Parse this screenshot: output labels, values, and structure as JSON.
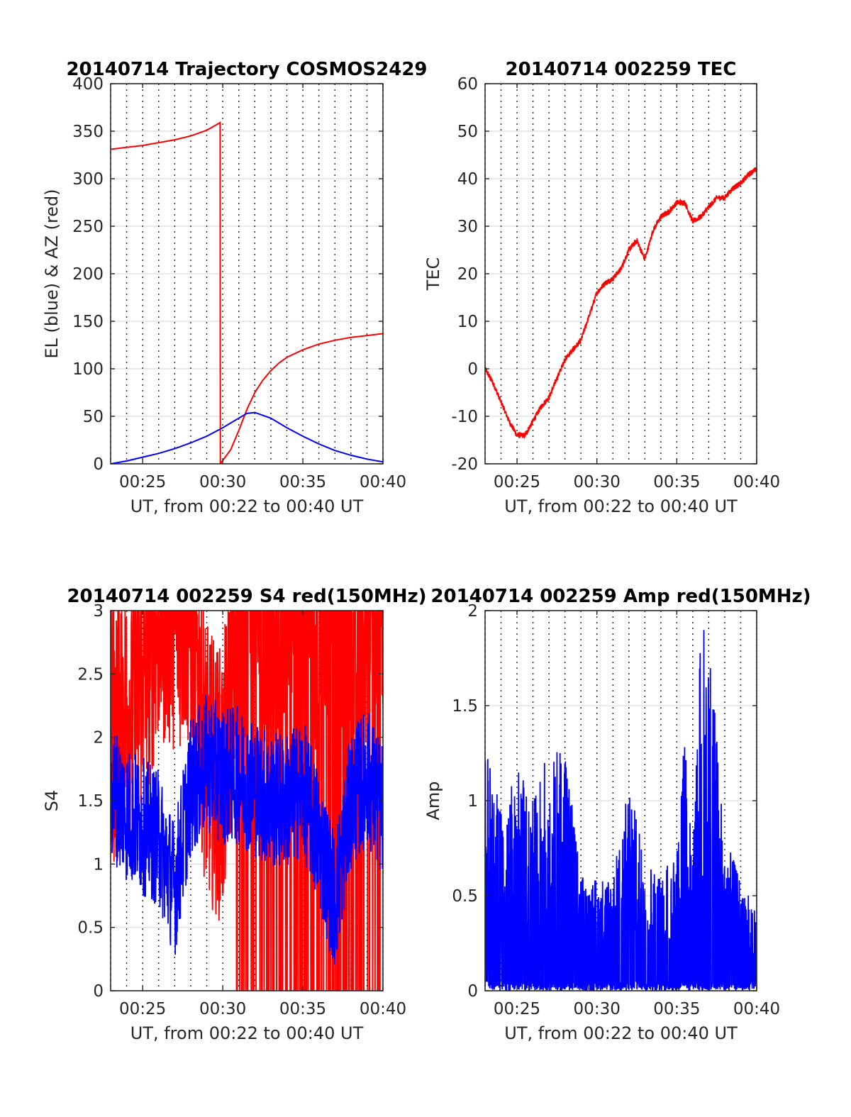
{
  "chart_data": [
    {
      "type": "line",
      "title": "20140714 Trajectory COSMOS2429",
      "xlabel": "UT, from 00:22 to 00:40 UT",
      "ylabel": "EL (blue) & AZ (red)",
      "xlim": [
        "00:23",
        "00:40"
      ],
      "ylim": [
        0,
        400
      ],
      "yticks": [
        0,
        50,
        100,
        150,
        200,
        250,
        300,
        350,
        400
      ],
      "xticks": [
        "00:25",
        "00:30",
        "00:35",
        "00:40"
      ],
      "grid": "dotted vertical lines each minute, horizontal grid at y ticks",
      "series": [
        {
          "color": "#ff0000",
          "x": [
            "00:23:00",
            "00:24:00",
            "00:25:00",
            "00:26:00",
            "00:27:00",
            "00:28:00",
            "00:29:00",
            "00:29:50",
            "00:29:51",
            "00:30:30",
            "00:31:00",
            "00:31:30",
            "00:32:00",
            "00:32:30",
            "00:33:00",
            "00:33:30",
            "00:34:00",
            "00:35:00",
            "00:36:00",
            "00:37:00",
            "00:38:00",
            "00:39:00",
            "00:40:00"
          ],
          "values": [
            331,
            333,
            335,
            338,
            341,
            345,
            351,
            359,
            0,
            15,
            35,
            57,
            75,
            88,
            98,
            106,
            112,
            120,
            126,
            130,
            133,
            135,
            137
          ]
        },
        {
          "color": "#0000ff",
          "x": [
            "00:23:00",
            "00:24:00",
            "00:25:00",
            "00:26:00",
            "00:27:00",
            "00:28:00",
            "00:29:00",
            "00:30:00",
            "00:31:00",
            "00:31:30",
            "00:32:00",
            "00:33:00",
            "00:34:00",
            "00:35:00",
            "00:36:00",
            "00:37:00",
            "00:38:00",
            "00:39:00",
            "00:40:00"
          ],
          "values": [
            0,
            3,
            7,
            11,
            16,
            22,
            29,
            38,
            48,
            53,
            54,
            48,
            38,
            29,
            21,
            14,
            9,
            5,
            2
          ]
        }
      ]
    },
    {
      "type": "line",
      "title": "20140714 002259 TEC",
      "xlabel": "UT, from 00:22 to 00:40 UT",
      "ylabel": "TEC",
      "xlim": [
        "00:23",
        "00:40"
      ],
      "ylim": [
        -20,
        60
      ],
      "yticks": [
        -20,
        -10,
        0,
        10,
        20,
        30,
        40,
        50,
        60
      ],
      "xticks": [
        "00:25",
        "00:30",
        "00:35",
        "00:40"
      ],
      "series": [
        {
          "color": "#ff0000",
          "x": [
            "00:23:00",
            "00:23:30",
            "00:24:00",
            "00:24:30",
            "00:25:00",
            "00:25:30",
            "00:26:00",
            "00:26:30",
            "00:27:00",
            "00:27:30",
            "00:28:00",
            "00:28:30",
            "00:29:00",
            "00:29:30",
            "00:30:00",
            "00:30:30",
            "00:31:00",
            "00:31:30",
            "00:32:00",
            "00:32:30",
            "00:33:00",
            "00:33:30",
            "00:34:00",
            "00:34:30",
            "00:35:00",
            "00:35:30",
            "00:36:00",
            "00:36:30",
            "00:37:00",
            "00:37:30",
            "00:38:00",
            "00:38:30",
            "00:39:00",
            "00:39:30",
            "00:40:00"
          ],
          "values": [
            0,
            -3,
            -7,
            -11,
            -14,
            -14,
            -11,
            -8,
            -6,
            -2,
            2,
            4,
            6,
            11,
            16,
            18,
            19,
            21,
            25,
            27,
            23,
            29,
            32,
            33,
            35,
            35,
            31,
            32,
            34,
            36,
            36,
            38,
            39,
            41,
            42
          ]
        }
      ]
    },
    {
      "type": "line",
      "title": "20140714 002259 S4 red(150MHz)",
      "xlabel": "UT, from 00:22 to 00:40 UT",
      "ylabel": "S4",
      "xlim": [
        "00:23",
        "00:40"
      ],
      "ylim": [
        0,
        3
      ],
      "yticks": [
        0,
        0.5,
        1,
        1.5,
        2,
        2.5,
        3
      ],
      "xticks": [
        "00:25",
        "00:30",
        "00:35",
        "00:40"
      ],
      "series": [
        {
          "color": "#ff0000",
          "x": [
            "00:23:00",
            "00:24:00",
            "00:25:00",
            "00:26:00",
            "00:27:00",
            "00:28:00",
            "00:29:00",
            "00:30:00",
            "00:31:00",
            "00:32:00",
            "00:33:00",
            "00:34:00",
            "00:35:00",
            "00:36:00",
            "00:37:00",
            "00:38:00",
            "00:39:00",
            "00:40:00"
          ],
          "values": [
            2.0,
            2.2,
            2.5,
            3.0,
            3.0,
            3.0,
            1.8,
            1.6,
            3.0,
            3.0,
            3.0,
            3.0,
            3.0,
            3.0,
            3.0,
            3.0,
            3.0,
            3.0
          ]
        },
        {
          "color": "#0000ff",
          "x": [
            "00:23:00",
            "00:24:00",
            "00:25:00",
            "00:26:00",
            "00:27:00",
            "00:28:00",
            "00:29:00",
            "00:30:00",
            "00:31:00",
            "00:32:00",
            "00:33:00",
            "00:34:00",
            "00:35:00",
            "00:36:00",
            "00:37:00",
            "00:38:00",
            "00:39:00",
            "00:40:00"
          ],
          "values": [
            1.6,
            1.4,
            1.3,
            1.2,
            0.8,
            1.6,
            1.8,
            1.7,
            1.7,
            1.6,
            1.5,
            1.5,
            1.6,
            1.2,
            0.7,
            1.5,
            1.7,
            1.4
          ]
        }
      ]
    },
    {
      "type": "line",
      "title": "20140714 002259 Amp red(150MHz)",
      "xlabel": "UT, from 00:22 to 00:40 UT",
      "ylabel": "Amp",
      "xlim": [
        "00:23",
        "00:40"
      ],
      "ylim": [
        0,
        2
      ],
      "yticks": [
        0,
        0.5,
        1,
        1.5,
        2
      ],
      "xticks": [
        "00:25",
        "00:30",
        "00:35",
        "00:40"
      ],
      "series": [
        {
          "color": "#0000ff",
          "x": [
            "00:23:00",
            "00:24:00",
            "00:25:00",
            "00:26:00",
            "00:27:00",
            "00:28:00",
            "00:29:00",
            "00:30:00",
            "00:31:00",
            "00:32:00",
            "00:33:00",
            "00:34:00",
            "00:35:00",
            "00:35:30",
            "00:36:00",
            "00:36:30",
            "00:37:00",
            "00:38:00",
            "00:39:00",
            "00:40:00"
          ],
          "values": [
            1.3,
            1.0,
            1.2,
            1.0,
            1.3,
            1.3,
            0.6,
            0.6,
            0.6,
            1.1,
            0.7,
            0.6,
            0.8,
            1.35,
            0.7,
            1.95,
            1.9,
            0.8,
            0.6,
            0.4
          ]
        }
      ]
    }
  ]
}
